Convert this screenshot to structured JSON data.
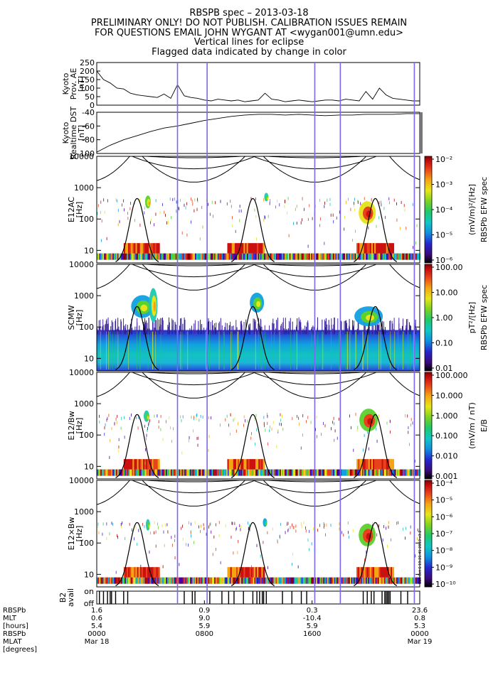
{
  "header": {
    "line1": "RBSPB spec – 2013-03-18",
    "line2": "PRELIMINARY ONLY! DO NOT PUBLISH. CALIBRATION ISSUES REMAIN",
    "line3": "FOR QUESTIONS EMAIL JOHN WYGANT AT <wygan001@umn.edu>",
    "line4": "Vertical lines for eclipse",
    "line5": "Flagged data indicated by change in color"
  },
  "colors": {
    "eclipse_line": "#7b68ee",
    "colorbar_stops": [
      "#000000",
      "#3b0a7a",
      "#2626cf",
      "#0f8fe0",
      "#11c6c6",
      "#1fc96a",
      "#7dd321",
      "#e6e619",
      "#f5a314",
      "#e8401a",
      "#c80f0f",
      "#8b0000"
    ]
  },
  "time_axis": {
    "range": [
      0,
      24
    ],
    "eclipse_hours": [
      6.0,
      8.2,
      16.2,
      18.1,
      23.6
    ],
    "tick_hours": [
      0,
      8,
      16,
      24
    ]
  },
  "footer": {
    "labels": [
      "RBSPb",
      "MLT",
      "[hours]",
      "RBSPb",
      "MLAT",
      "[degrees]"
    ],
    "columns": [
      {
        "mlt_rbspb": "1.6",
        "mlt": "0.6",
        "hours": "5.4",
        "mlat_rbspb": "0000",
        "date": "Mar 18"
      },
      {
        "mlt_rbspb": "0.9",
        "mlt": "9.0",
        "hours": "5.9",
        "mlat_rbspb": "0800",
        "date": ""
      },
      {
        "mlt_rbspb": "0.3",
        "mlt": "-10.4",
        "hours": "5.9",
        "mlat_rbspb": "1600",
        "date": ""
      },
      {
        "mlt_rbspb": "23.6",
        "mlt": "0.8",
        "hours": "5.3",
        "mlat_rbspb": "0000",
        "date": "Mar 19"
      }
    ]
  },
  "side_stamp": "Sun Oct  6 19:26:41 2013 v3.2",
  "chart_data": [
    {
      "type": "line",
      "ylabel": [
        "Kyoto",
        "Prov. AE",
        "[nT]"
      ],
      "ylim": [
        0,
        250
      ],
      "yticks": [
        "0",
        "50",
        "100",
        "150",
        "200",
        "250"
      ],
      "x": [
        0,
        0.5,
        1,
        1.5,
        2,
        2.5,
        3,
        3.5,
        4,
        4.5,
        5,
        5.5,
        6,
        6.5,
        7,
        7.5,
        8,
        8.5,
        9,
        9.5,
        10,
        10.5,
        11,
        11.5,
        12,
        12.5,
        13,
        13.5,
        14,
        14.5,
        15,
        15.5,
        16,
        16.5,
        17,
        17.5,
        18,
        18.5,
        19,
        19.5,
        20,
        20.5,
        21,
        21.5,
        22,
        22.5,
        23,
        23.5,
        24
      ],
      "y": [
        200,
        150,
        130,
        100,
        95,
        70,
        60,
        55,
        50,
        45,
        65,
        40,
        120,
        55,
        45,
        40,
        30,
        25,
        35,
        30,
        25,
        30,
        20,
        25,
        30,
        70,
        35,
        30,
        20,
        25,
        30,
        25,
        20,
        25,
        30,
        30,
        25,
        35,
        30,
        25,
        80,
        35,
        100,
        60,
        40,
        35,
        30,
        25,
        25
      ]
    },
    {
      "type": "line",
      "ylabel": [
        "Kyoto",
        "Realtime DST",
        "[nT]"
      ],
      "ylim": [
        -100,
        -40
      ],
      "yticks": [
        "-100",
        "-80",
        "-60",
        "-40"
      ],
      "x": [
        0,
        1,
        2,
        3,
        4,
        5,
        6,
        7,
        8,
        9,
        10,
        11,
        12,
        13,
        14,
        15,
        16,
        17,
        18,
        19,
        20,
        21,
        22,
        23,
        24
      ],
      "y": [
        -98,
        -88,
        -80,
        -74,
        -68,
        -63,
        -60,
        -56,
        -52,
        -49,
        -46,
        -44,
        -43,
        -43,
        -44,
        -43,
        -44,
        -45,
        -44,
        -44,
        -43,
        -43,
        -43,
        -42,
        -42
      ]
    },
    {
      "type": "heatmap",
      "ylabel": [
        "E12AC",
        "[Hz]"
      ],
      "yticks": [
        "10",
        "100",
        "1000",
        "10000"
      ],
      "colorbar": {
        "title": "RBSPb EFW spec",
        "unit": "(mV/m)²/[Hz]",
        "ticks": [
          "10⁻²",
          "10⁻³",
          "10⁻⁴",
          "10⁻⁵",
          "10⁻⁶"
        ]
      }
    },
    {
      "type": "heatmap",
      "ylabel": [
        "SCMW",
        "[Hz]"
      ],
      "yticks": [
        "10",
        "100",
        "1000",
        "10000"
      ],
      "colorbar": {
        "title": "RBSPb EFW spec",
        "unit": "pT²/[Hz]",
        "ticks": [
          "100.00",
          "10.00",
          "1.00",
          "0.10",
          "0.01"
        ]
      }
    },
    {
      "type": "heatmap",
      "ylabel": [
        "E12/Bw",
        "[Hz]"
      ],
      "yticks": [
        "10",
        "100",
        "1000",
        "10000"
      ],
      "colorbar": {
        "title": "E/B",
        "unit": "(mV/m / nT)",
        "ticks": [
          "100.000",
          "10.000",
          "1.000",
          "0.100",
          "0.010",
          "0.001"
        ]
      }
    },
    {
      "type": "heatmap",
      "ylabel": [
        "E12×Bw",
        "[Hz]"
      ],
      "yticks": [
        "10",
        "100",
        "1000",
        "10000"
      ],
      "colorbar": {
        "title": "",
        "unit": "",
        "ticks": [
          "10⁻⁴",
          "10⁻⁵",
          "10⁻⁶",
          "10⁻⁷",
          "10⁻⁸",
          "10⁻⁹",
          "10⁻¹⁰"
        ]
      }
    },
    {
      "type": "bar",
      "ylabel": [
        "B2",
        "avail"
      ],
      "yticks": [
        "on",
        "off"
      ],
      "on_hours": [
        0.2,
        0.5,
        0.8,
        1.0,
        1.1,
        1.4,
        2.0,
        2.3,
        6.5,
        7.1,
        7.3,
        8.4,
        9.3,
        9.8,
        10.2,
        10.9,
        11.6,
        11.9,
        12.1,
        12.3,
        12.4,
        12.6,
        13.8,
        14.5,
        15.2,
        15.6,
        19.8,
        20.1,
        20.4,
        20.6,
        21.2,
        21.4,
        21.5,
        21.6,
        21.7,
        21.8,
        22.6,
        23.1
      ]
    }
  ]
}
